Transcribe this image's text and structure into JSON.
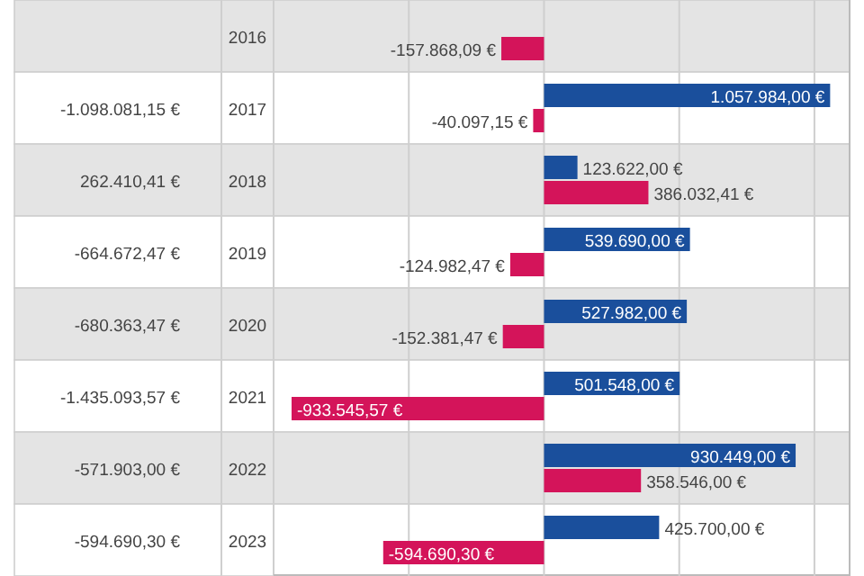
{
  "chart_data": {
    "type": "bar",
    "orientation": "horizontal",
    "categories": [
      "2016",
      "2017",
      "2018",
      "2019",
      "2020",
      "2021",
      "2022",
      "2023"
    ],
    "series": [
      {
        "color": "#1a4f9c",
        "values": [
          null,
          1057984.0,
          123622.0,
          539690.0,
          527982.0,
          501548.0,
          930449.0,
          425700.0
        ],
        "value_labels": [
          null,
          "1.057.984,00 €",
          "123.622,00 €",
          "539.690,00 €",
          "527.982,00 €",
          "501.548,00 €",
          "930.449,00 €",
          "425.700,00 €"
        ]
      },
      {
        "color": "#d4145a",
        "values": [
          -157868.09,
          -40097.15,
          386032.41,
          -124982.47,
          -152381.47,
          -933545.57,
          358546.0,
          -594690.3
        ],
        "value_labels": [
          "-157.868,09 €",
          "-40.097,15 €",
          "386.032,41 €",
          "-124.982,47 €",
          "-152.381,47 €",
          "-933.545,57 €",
          "358.546,00 €",
          "-594.690,30 €"
        ]
      }
    ],
    "xlim": [
      -1000000,
      1130000
    ],
    "xticks": [
      {
        "value": -500000,
        "label": null
      },
      {
        "value": 0,
        "label": null
      },
      {
        "value": 500000,
        "label": null
      },
      {
        "value": 1000000,
        "label": null
      }
    ],
    "grid": "x",
    "tick_labels": "y",
    "annotations": [
      "-1.098.081,15 €",
      "262.410,41 €",
      "-664.672,47 €",
      "-680.363,47 €",
      "-1.435.093,57 €",
      "-571.903,00 €",
      "-594.690,30 €"
    ]
  }
}
